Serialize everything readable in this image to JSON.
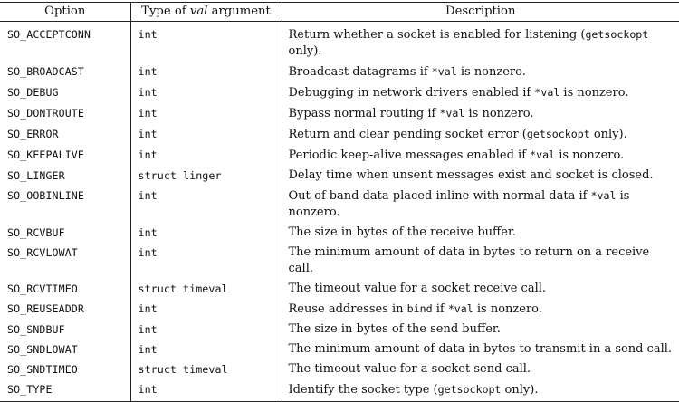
{
  "headers": {
    "option": "Option",
    "type_prefix": "Type of ",
    "type_italic": "val",
    "type_suffix": " argument",
    "description": "Description"
  },
  "rows": [
    {
      "option": "SO_ACCEPTCONN",
      "type": "int",
      "desc": [
        [
          "t",
          "Return whether a socket is enabled for listening ("
        ],
        [
          "c",
          "getsockopt"
        ],
        [
          "t",
          " only).   "
        ]
      ]
    },
    {
      "option": "SO_BROADCAST",
      "type": "int",
      "desc": [
        [
          "t",
          "Broadcast datagrams if "
        ],
        [
          "c",
          "*val"
        ],
        [
          "t",
          " is nonzero."
        ]
      ]
    },
    {
      "option": "SO_DEBUG",
      "type": "int",
      "desc": [
        [
          "t",
          "Debugging in network drivers enabled if "
        ],
        [
          "c",
          "*val"
        ],
        [
          "t",
          " is nonzero."
        ]
      ]
    },
    {
      "option": "SO_DONTROUTE",
      "type": "int",
      "desc": [
        [
          "t",
          "Bypass normal routing if "
        ],
        [
          "c",
          "*val"
        ],
        [
          "t",
          " is nonzero."
        ]
      ]
    },
    {
      "option": "SO_ERROR",
      "type": "int",
      "desc": [
        [
          "t",
          "Return and clear pending socket error ("
        ],
        [
          "c",
          "getsockopt"
        ],
        [
          "t",
          " only)."
        ]
      ]
    },
    {
      "option": "SO_KEEPALIVE",
      "type": "int",
      "desc": [
        [
          "t",
          "Periodic keep-alive messages enabled if "
        ],
        [
          "c",
          "*val"
        ],
        [
          "t",
          " is nonzero."
        ]
      ]
    },
    {
      "option": "SO_LINGER",
      "type": "struct linger",
      "desc": [
        [
          "t",
          "Delay time when unsent messages exist and socket is closed."
        ]
      ]
    },
    {
      "option": "SO_OOBINLINE",
      "type": "int",
      "desc": [
        [
          "t",
          "Out-of-band data placed inline with normal data if "
        ],
        [
          "c",
          "*val"
        ],
        [
          "t",
          " is nonzero."
        ]
      ]
    },
    {
      "option": "SO_RCVBUF",
      "type": "int",
      "desc": [
        [
          "t",
          "The size in bytes of the receive buffer."
        ]
      ]
    },
    {
      "option": "SO_RCVLOWAT",
      "type": "int",
      "desc": [
        [
          "t",
          "The minimum amount of data in bytes to return on a receive call."
        ]
      ]
    },
    {
      "option": "SO_RCVTIMEO",
      "type": "struct timeval",
      "desc": [
        [
          "t",
          "The timeout value for a socket receive call."
        ]
      ]
    },
    {
      "option": "SO_REUSEADDR",
      "type": "int",
      "desc": [
        [
          "t",
          "Reuse addresses in "
        ],
        [
          "c",
          "bind"
        ],
        [
          "t",
          " if "
        ],
        [
          "c",
          "*val"
        ],
        [
          "t",
          " is nonzero."
        ]
      ]
    },
    {
      "option": "SO_SNDBUF",
      "type": "int",
      "desc": [
        [
          "t",
          "The size in bytes of the send buffer."
        ]
      ]
    },
    {
      "option": "SO_SNDLOWAT",
      "type": "int",
      "desc": [
        [
          "t",
          "The minimum amount of data in bytes to transmit in a send call."
        ]
      ]
    },
    {
      "option": "SO_SNDTIMEO",
      "type": "struct timeval",
      "desc": [
        [
          "t",
          "The timeout value for a socket send call."
        ]
      ]
    },
    {
      "option": "SO_TYPE",
      "type": "int",
      "desc": [
        [
          "t",
          "Identify the socket type ("
        ],
        [
          "c",
          "getsockopt"
        ],
        [
          "t",
          " only)."
        ]
      ]
    }
  ]
}
